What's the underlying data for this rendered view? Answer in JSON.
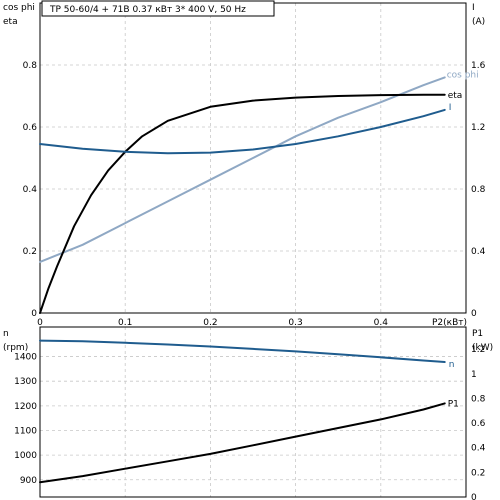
{
  "header": {
    "title": "TP 50-60/4 + 71B    0.37 кВт   3* 400 V, 50 Hz"
  },
  "colors": {
    "cos_phi": "#8fa8c4",
    "eta": "#000000",
    "current": "#1f5c8e",
    "speed": "#1f5c8e",
    "power": "#000000"
  },
  "chart_data": [
    {
      "type": "line",
      "left_axis_label_line1": "cos phi",
      "left_axis_label_line2": "eta",
      "right_axis_label_line1": "I",
      "right_axis_label_line2": "(A)",
      "x_axis_label": "P2(кВт)",
      "xlim": [
        0,
        0.5
      ],
      "ylim_left": [
        0,
        1.0
      ],
      "ylim_right": [
        0,
        2.0
      ],
      "x_ticks": [
        0,
        0.1,
        0.2,
        0.3,
        0.4
      ],
      "x_tick_labels": [
        "0",
        "0.1",
        "0.2",
        "0.3",
        "0.4"
      ],
      "y_left_ticks": [
        0,
        0.2,
        0.4,
        0.6,
        0.8
      ],
      "y_left_tick_labels": [
        "0",
        "0.2",
        "0.4",
        "0.6",
        "0.8"
      ],
      "y_right_ticks": [
        0,
        0.4,
        0.8,
        1.2,
        1.6
      ],
      "y_right_tick_labels": [
        "0",
        "0.4",
        "0.8",
        "1.2",
        "1.6"
      ],
      "grid": true,
      "series": [
        {
          "name": "cos phi",
          "key": "cos_phi",
          "axis": "left",
          "x": [
            0,
            0.05,
            0.1,
            0.15,
            0.2,
            0.25,
            0.3,
            0.35,
            0.4,
            0.45,
            0.475
          ],
          "y": [
            0.165,
            0.22,
            0.29,
            0.36,
            0.43,
            0.5,
            0.57,
            0.63,
            0.68,
            0.735,
            0.76
          ]
        },
        {
          "name": "eta",
          "key": "eta",
          "axis": "left",
          "x": [
            0,
            0.01,
            0.02,
            0.04,
            0.06,
            0.08,
            0.1,
            0.12,
            0.15,
            0.2,
            0.25,
            0.3,
            0.35,
            0.4,
            0.45,
            0.475
          ],
          "y": [
            0,
            0.08,
            0.15,
            0.28,
            0.38,
            0.46,
            0.52,
            0.57,
            0.62,
            0.665,
            0.685,
            0.695,
            0.7,
            0.703,
            0.704,
            0.704
          ]
        },
        {
          "name": "I",
          "key": "current",
          "axis": "right",
          "x": [
            0,
            0.05,
            0.1,
            0.15,
            0.2,
            0.25,
            0.3,
            0.35,
            0.4,
            0.45,
            0.475
          ],
          "y": [
            1.09,
            1.06,
            1.04,
            1.03,
            1.035,
            1.055,
            1.09,
            1.14,
            1.2,
            1.27,
            1.31
          ]
        }
      ]
    },
    {
      "type": "line",
      "left_axis_label_line1": "n",
      "left_axis_label_line2": "(rpm)",
      "right_axis_label_line1": "P1",
      "right_axis_label_line2": "(kW)",
      "xlim": [
        0,
        0.5
      ],
      "ylim_left": [
        830,
        1520
      ],
      "ylim_right": [
        0,
        1.38
      ],
      "x_ticks": [
        0,
        0.1,
        0.2,
        0.3,
        0.4
      ],
      "y_left_ticks": [
        900,
        1000,
        1100,
        1200,
        1300,
        1400
      ],
      "y_left_tick_labels": [
        "900",
        "1000",
        "1100",
        "1200",
        "1300",
        "1400"
      ],
      "y_right_ticks": [
        0,
        0.2,
        0.4,
        0.6,
        0.8,
        1.0,
        1.2
      ],
      "y_right_tick_labels": [
        "0",
        "0.2",
        "0.4",
        "0.6",
        "0.8",
        "1",
        "1.2"
      ],
      "grid": true,
      "series": [
        {
          "name": "n",
          "key": "speed",
          "axis": "left",
          "x": [
            0,
            0.05,
            0.1,
            0.15,
            0.2,
            0.25,
            0.3,
            0.35,
            0.4,
            0.45,
            0.475
          ],
          "y": [
            1465,
            1462,
            1456,
            1449,
            1441,
            1431,
            1421,
            1409,
            1397,
            1384,
            1378
          ]
        },
        {
          "name": "P1",
          "key": "power",
          "axis": "right",
          "x": [
            0,
            0.05,
            0.1,
            0.15,
            0.2,
            0.25,
            0.3,
            0.35,
            0.4,
            0.45,
            0.475
          ],
          "y": [
            0.12,
            0.17,
            0.23,
            0.29,
            0.35,
            0.42,
            0.49,
            0.56,
            0.63,
            0.71,
            0.76
          ]
        }
      ]
    }
  ]
}
